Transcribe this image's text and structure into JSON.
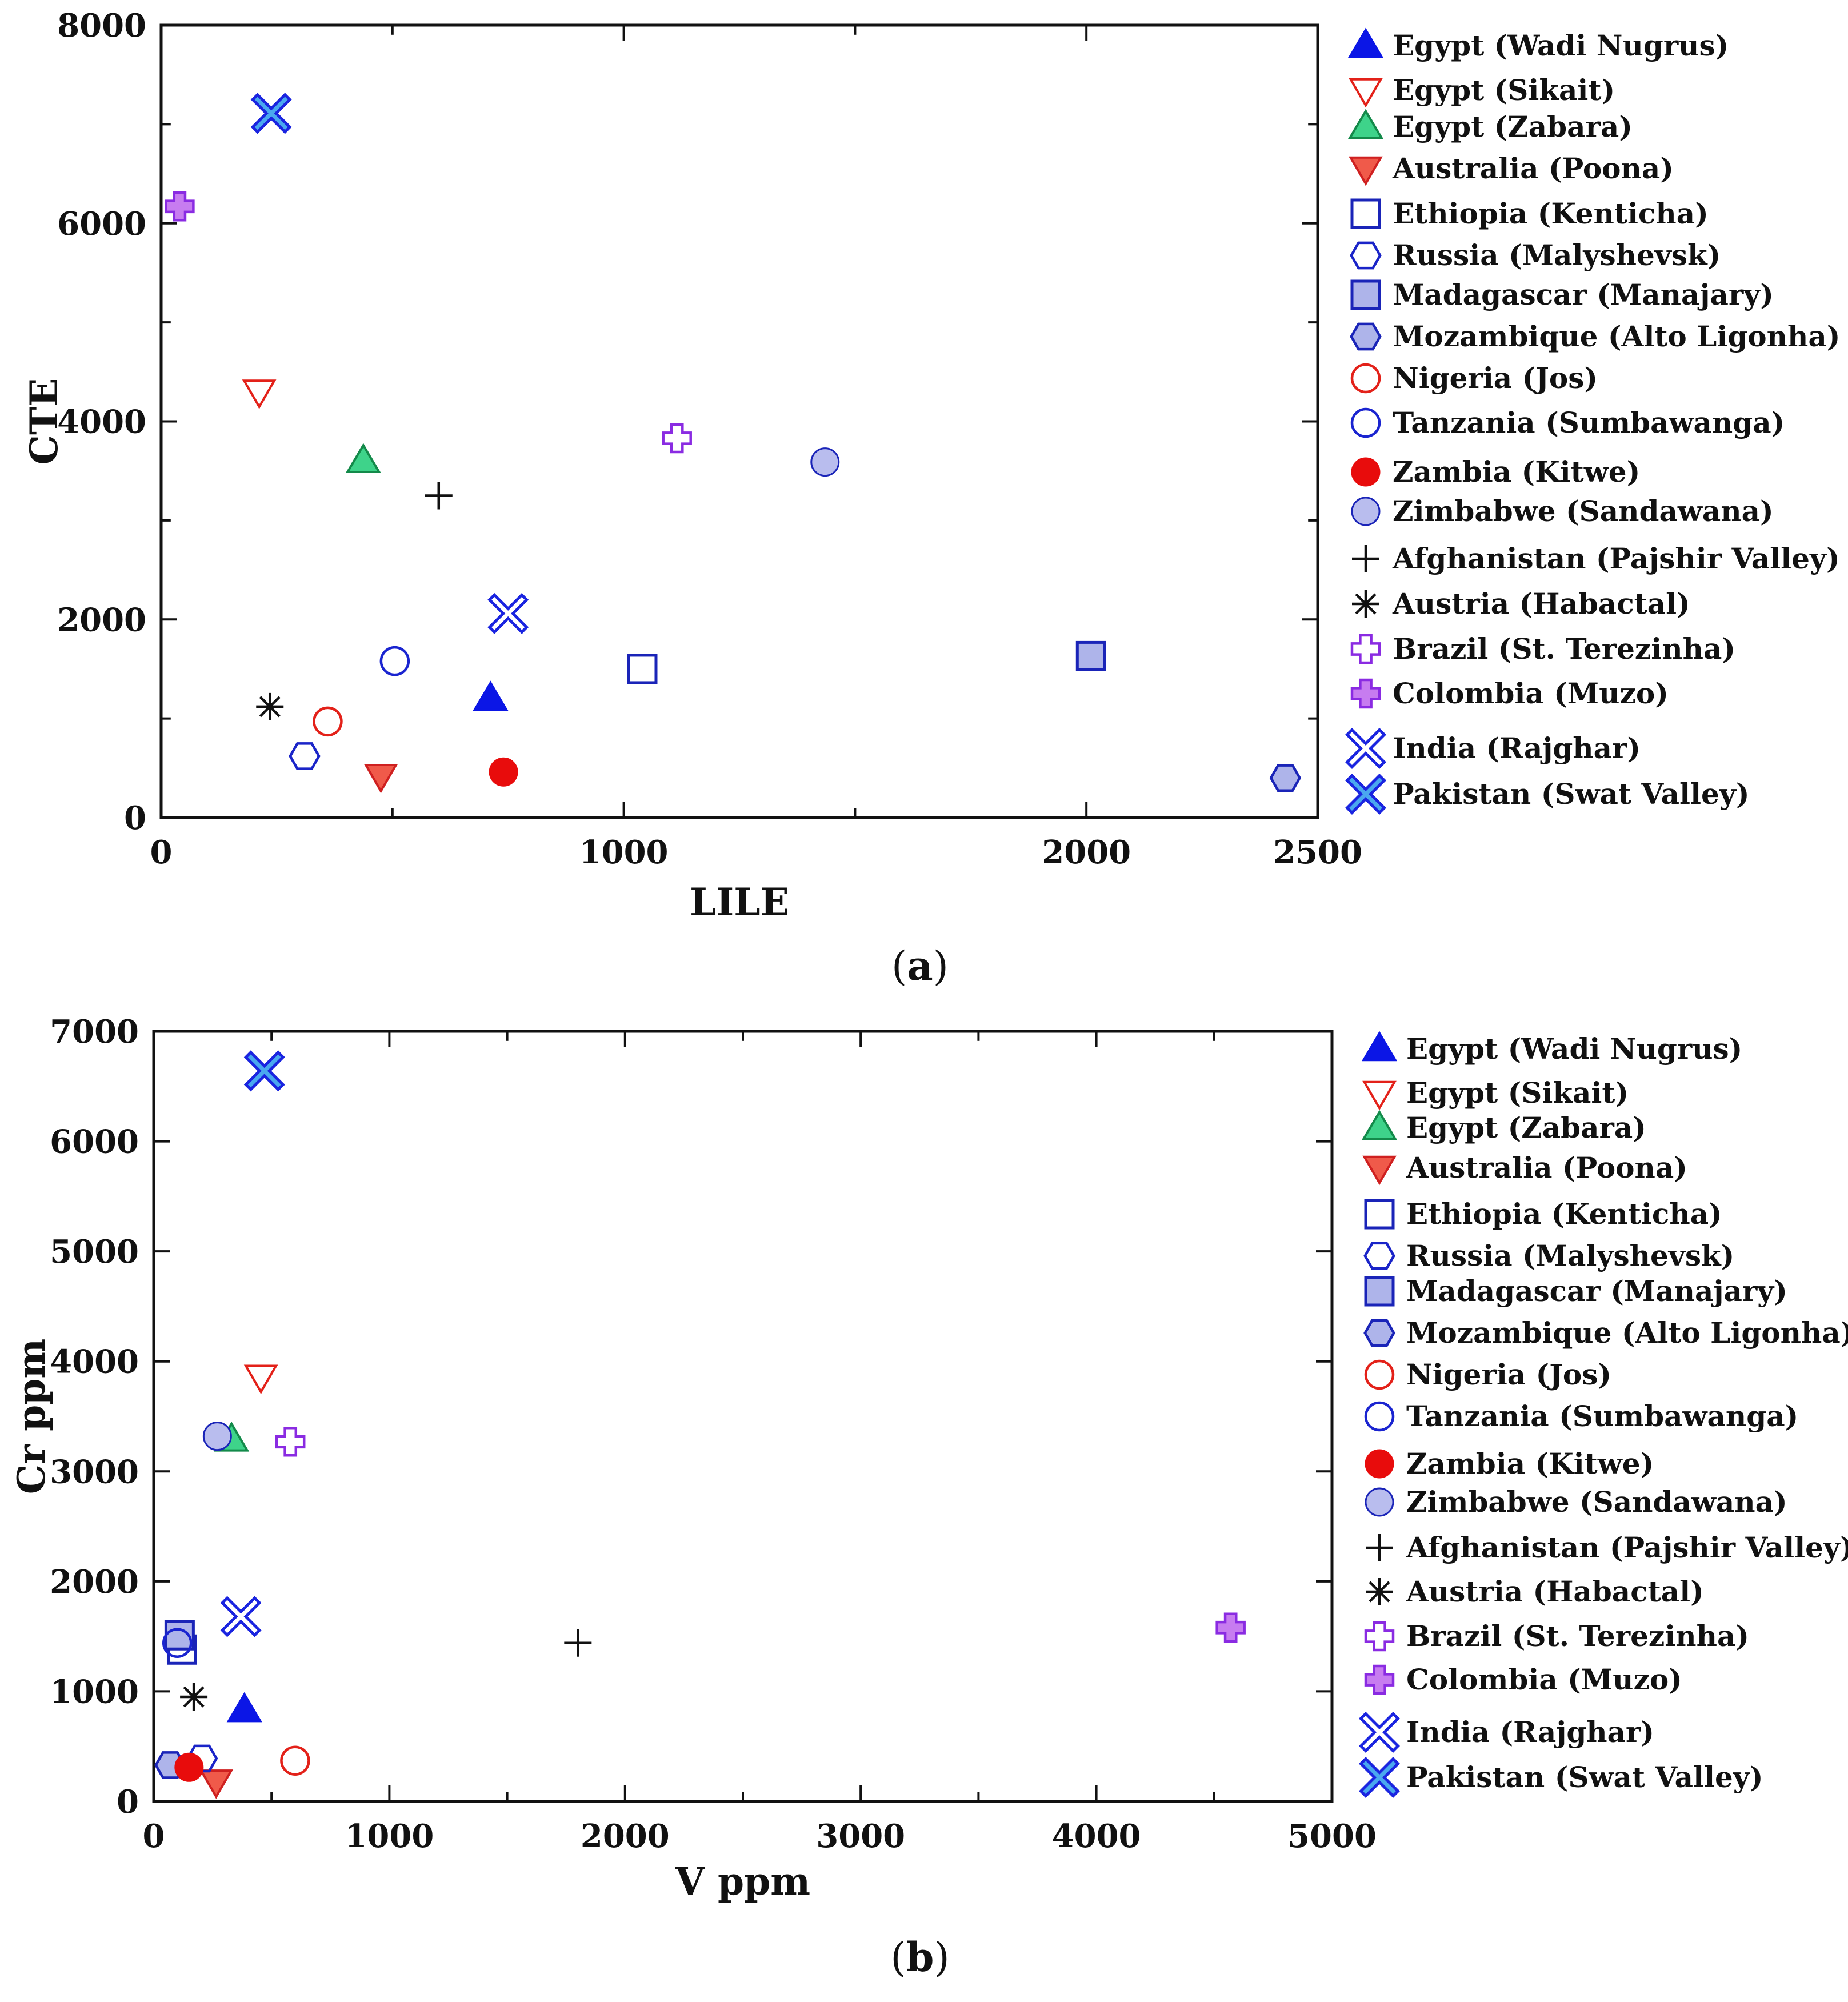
{
  "chart_data": [
    {
      "type": "scatter",
      "panel_label": "a",
      "xlabel": "LILE",
      "ylabel": "CTE",
      "xlim": [
        0,
        2500
      ],
      "ylim": [
        0,
        8000
      ],
      "xticks": [
        0,
        1000,
        2000,
        2500
      ],
      "yticks": [
        0,
        2000,
        4000,
        6000,
        8000
      ],
      "grid": false,
      "legend_position": "right",
      "series": [
        {
          "name": "Egypt (Wadi Nugrus)",
          "marker": "triangle-up-filled",
          "x": [
            712
          ],
          "y": [
            1200
          ]
        },
        {
          "name": "Egypt (Sikait)",
          "marker": "triangle-down-open",
          "x": [
            212
          ],
          "y": [
            4300
          ]
        },
        {
          "name": "Egypt (Zabara)",
          "marker": "triangle-up-filled",
          "x": [
            437
          ],
          "y": [
            3600
          ]
        },
        {
          "name": "Australia (Poona)",
          "marker": "triangle-down-filled",
          "x": [
            475
          ],
          "y": [
            420
          ]
        },
        {
          "name": "Ethiopia (Kenticha)",
          "marker": "square-open",
          "x": [
            1040
          ],
          "y": [
            1500
          ]
        },
        {
          "name": "Russia (Malyshevsk)",
          "marker": "hexagon-open",
          "x": [
            310
          ],
          "y": [
            620
          ]
        },
        {
          "name": "Madagascar (Manajary)",
          "marker": "square-filled",
          "x": [
            2010
          ],
          "y": [
            1630
          ]
        },
        {
          "name": "Mozambique (Alto Ligonha)",
          "marker": "hexagon-filled",
          "x": [
            2430
          ],
          "y": [
            400
          ]
        },
        {
          "name": "Nigeria (Jos)",
          "marker": "circle-open",
          "x": [
            360
          ],
          "y": [
            970
          ]
        },
        {
          "name": "Tanzania (Sumbawanga)",
          "marker": "circle-open",
          "x": [
            505
          ],
          "y": [
            1580
          ]
        },
        {
          "name": "Zambia (Kitwe)",
          "marker": "circle-filled",
          "x": [
            740
          ],
          "y": [
            460
          ]
        },
        {
          "name": "Zimbabwe (Sandawana)",
          "marker": "circle-filled",
          "x": [
            1435
          ],
          "y": [
            3590
          ]
        },
        {
          "name": "Afghanistan (Pajshir Valley)",
          "marker": "plus",
          "x": [
            600
          ],
          "y": [
            3250
          ]
        },
        {
          "name": "Austria (Habactal)",
          "marker": "asterisk",
          "x": [
            235
          ],
          "y": [
            1120
          ]
        },
        {
          "name": "Brazil (St. Terezinha)",
          "marker": "cross-open",
          "x": [
            1115
          ],
          "y": [
            3830
          ]
        },
        {
          "name": "Colombia (Muzo)",
          "marker": "cross-filled",
          "x": [
            40
          ],
          "y": [
            6170
          ]
        },
        {
          "name": "India (Rajghar)",
          "marker": "x-open",
          "x": [
            750
          ],
          "y": [
            2060
          ]
        },
        {
          "name": "Pakistan (Swat Valley)",
          "marker": "x-filled",
          "x": [
            238
          ],
          "y": [
            7110
          ]
        }
      ]
    },
    {
      "type": "scatter",
      "panel_label": "b",
      "xlabel": "V ppm",
      "ylabel": "Cr ppm",
      "xlim": [
        0,
        5000
      ],
      "ylim": [
        0,
        7000
      ],
      "xticks": [
        0,
        1000,
        2000,
        3000,
        4000,
        5000
      ],
      "yticks": [
        0,
        1000,
        2000,
        3000,
        4000,
        5000,
        6000,
        7000
      ],
      "grid": false,
      "legend_position": "right",
      "series": [
        {
          "name": "Egypt (Wadi Nugrus)",
          "marker": "triangle-up-filled",
          "x": [
            385
          ],
          "y": [
            830
          ]
        },
        {
          "name": "Egypt (Sikait)",
          "marker": "triangle-down-open",
          "x": [
            455
          ],
          "y": [
            3860
          ]
        },
        {
          "name": "Egypt (Zabara)",
          "marker": "triangle-up-filled",
          "x": [
            330
          ],
          "y": [
            3290
          ]
        },
        {
          "name": "Australia (Poona)",
          "marker": "triangle-down-filled",
          "x": [
            265
          ],
          "y": [
            180
          ]
        },
        {
          "name": "Ethiopia (Kenticha)",
          "marker": "square-open",
          "x": [
            120
          ],
          "y": [
            1380
          ]
        },
        {
          "name": "Russia (Malyshevsk)",
          "marker": "hexagon-open",
          "x": [
            205
          ],
          "y": [
            390
          ]
        },
        {
          "name": "Madagascar (Manajary)",
          "marker": "square-filled",
          "x": [
            110
          ],
          "y": [
            1510
          ]
        },
        {
          "name": "Mozambique (Alto Ligonha)",
          "marker": "hexagon-filled",
          "x": [
            70
          ],
          "y": [
            330
          ]
        },
        {
          "name": "Nigeria (Jos)",
          "marker": "circle-open",
          "x": [
            600
          ],
          "y": [
            370
          ]
        },
        {
          "name": "Tanzania (Sumbawanga)",
          "marker": "circle-open",
          "x": [
            100
          ],
          "y": [
            1440
          ]
        },
        {
          "name": "Zambia (Kitwe)",
          "marker": "circle-filled",
          "x": [
            150
          ],
          "y": [
            310
          ]
        },
        {
          "name": "Zimbabwe (Sandawana)",
          "marker": "circle-filled",
          "x": [
            270
          ],
          "y": [
            3320
          ]
        },
        {
          "name": "Afghanistan (Pajshir Valley)",
          "marker": "plus",
          "x": [
            1800
          ],
          "y": [
            1440
          ]
        },
        {
          "name": "Austria (Habactal)",
          "marker": "asterisk",
          "x": [
            170
          ],
          "y": [
            950
          ]
        },
        {
          "name": "Brazil (St. Terezinha)",
          "marker": "cross-open",
          "x": [
            580
          ],
          "y": [
            3270
          ]
        },
        {
          "name": "Colombia (Muzo)",
          "marker": "cross-filled",
          "x": [
            4570
          ],
          "y": [
            1580
          ]
        },
        {
          "name": "India (Rajghar)",
          "marker": "x-open",
          "x": [
            370
          ],
          "y": [
            1680
          ]
        },
        {
          "name": "Pakistan (Swat Valley)",
          "marker": "x-filled",
          "x": [
            470
          ],
          "y": [
            6640
          ]
        }
      ]
    }
  ],
  "styles": {
    "Egypt (Wadi Nugrus)": {
      "stroke": "#0b16e6",
      "fill": "#0b16e6"
    },
    "Egypt (Sikait)": {
      "stroke": "#e32119",
      "fill": "none"
    },
    "Egypt (Zabara)": {
      "stroke": "#138a4a",
      "fill": "#3ed38a"
    },
    "Australia (Poona)": {
      "stroke": "#cf2020",
      "fill": "#f05a4a"
    },
    "Ethiopia (Kenticha)": {
      "stroke": "#1a24b8",
      "fill": "none"
    },
    "Russia (Malyshevsk)": {
      "stroke": "#1a24c8",
      "fill": "none"
    },
    "Madagascar (Manajary)": {
      "stroke": "#1a24b8",
      "fill": "#aeb4ea"
    },
    "Mozambique (Alto Ligonha)": {
      "stroke": "#1a24b8",
      "fill": "#aeb4ea"
    },
    "Nigeria (Jos)": {
      "stroke": "#e32119",
      "fill": "none"
    },
    "Tanzania (Sumbawanga)": {
      "stroke": "#1a24d0",
      "fill": "none"
    },
    "Zambia (Kitwe)": {
      "stroke": "#e80c0c",
      "fill": "#e80c0c"
    },
    "Zimbabwe (Sandawana)": {
      "stroke": "#1a24b8",
      "fill": "#b9bdee"
    },
    "Afghanistan (Pajshir Valley)": {
      "stroke": "#111111",
      "fill": "none"
    },
    "Austria (Habactal)": {
      "stroke": "#111111",
      "fill": "none"
    },
    "Brazil (St. Terezinha)": {
      "stroke": "#8a2be2",
      "fill": "#ffffff"
    },
    "Colombia (Muzo)": {
      "stroke": "#8a2be2",
      "fill": "#c77cf0"
    },
    "India (Rajghar)": {
      "stroke": "#1a24e0",
      "fill": "#ffffff"
    },
    "Pakistan (Swat Valley)": {
      "stroke": "#1a24e0",
      "fill": "#4aa8ef"
    }
  }
}
